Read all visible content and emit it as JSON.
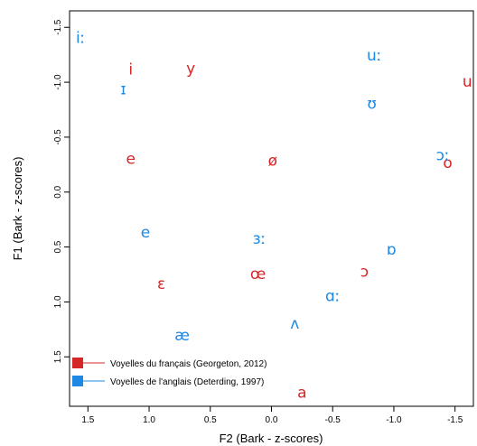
{
  "chart_data": {
    "type": "scatter",
    "xlabel": "F2 (Bark - z-scores)",
    "ylabel": "F1 (Bark - z-scores)",
    "xlim": [
      1.65,
      -1.65
    ],
    "ylim": [
      -1.65,
      1.95
    ],
    "x_ticks": [
      1.5,
      1.0,
      0.5,
      0.0,
      -0.5,
      -1.0,
      -1.5
    ],
    "x_tick_labels": [
      "1.5",
      "1.0",
      "0.5",
      "0.0",
      "-0.5",
      "-1.0",
      "-1.5"
    ],
    "y_ticks": [
      -1.5,
      -1.0,
      -0.5,
      0.0,
      0.5,
      1.0,
      1.5
    ],
    "y_tick_labels": [
      "-1.5",
      "-1.0",
      "-0.5",
      "0.0",
      "0.5",
      "1.0",
      "1.5"
    ],
    "x_reversed": true,
    "y_reversed": true,
    "grid": false,
    "legend_position": "bottom-left",
    "series": [
      {
        "name": "Voyelles du français (Georgeton, 2012)",
        "color": "#d62728",
        "points": [
          {
            "label": "i",
            "x": 1.15,
            "y": -1.11
          },
          {
            "label": "y",
            "x": 0.66,
            "y": -1.12
          },
          {
            "label": "u",
            "x": -1.6,
            "y": -1.0
          },
          {
            "label": "e",
            "x": 1.15,
            "y": -0.3
          },
          {
            "label": "ø",
            "x": -0.01,
            "y": -0.28
          },
          {
            "label": "o",
            "x": -1.44,
            "y": -0.26
          },
          {
            "label": "ɛ",
            "x": 0.9,
            "y": 0.84
          },
          {
            "label": "œ",
            "x": 0.11,
            "y": 0.75
          },
          {
            "label": "ɔ",
            "x": -0.76,
            "y": 0.73
          },
          {
            "label": "a",
            "x": -0.25,
            "y": 1.83
          }
        ]
      },
      {
        "name": "Voyelles de l'anglais (Deterding, 1997)",
        "color": "#1e88e5",
        "points": [
          {
            "label": "iː",
            "x": 1.56,
            "y": -1.4
          },
          {
            "label": "ɪ",
            "x": 1.21,
            "y": -0.93
          },
          {
            "label": "uː",
            "x": -0.84,
            "y": -1.24
          },
          {
            "label": "ʊ",
            "x": -0.82,
            "y": -0.8
          },
          {
            "label": "ɔː",
            "x": -1.4,
            "y": -0.33
          },
          {
            "label": "e",
            "x": 1.03,
            "y": 0.37
          },
          {
            "label": "ɜː",
            "x": 0.1,
            "y": 0.43
          },
          {
            "label": "ɒ",
            "x": -0.98,
            "y": 0.53
          },
          {
            "label": "ɑː",
            "x": -0.5,
            "y": 0.95
          },
          {
            "label": "ʌ",
            "x": -0.19,
            "y": 1.2
          },
          {
            "label": "æ",
            "x": 0.73,
            "y": 1.31
          }
        ]
      }
    ]
  }
}
